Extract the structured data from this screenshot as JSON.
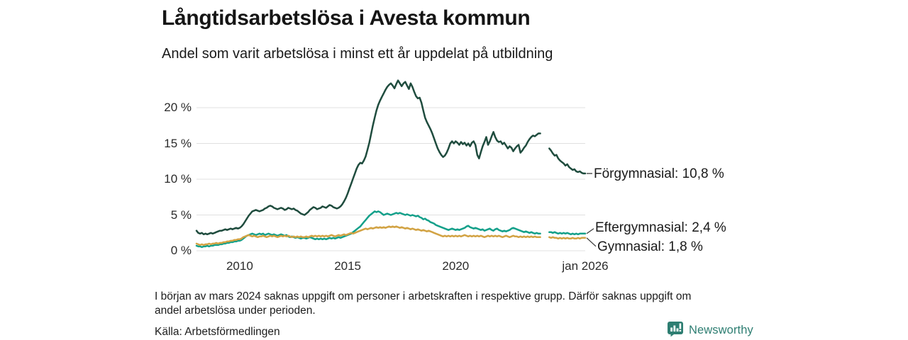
{
  "header": {
    "title": "Långtidsarbetslösa i Avesta kommun",
    "subtitle": "Andel som varit arbetslösa i minst ett år uppdelat på utbildning"
  },
  "chart_data": {
    "type": "line",
    "title": "Långtidsarbetslösa i Avesta kommun",
    "subtitle": "Andel som varit arbetslösa i minst ett år uppdelat på utbildning",
    "unit": "%",
    "frequency": "monthly",
    "x_start": "jan 2008",
    "x_end": "jan 2026",
    "ylim": [
      0,
      24.5
    ],
    "grid": true,
    "data_gap": "kring mars 2024 visas avbrott i linjerna (uppgift saknas)",
    "y_ticks": [
      {
        "value": 0,
        "label": "0 %"
      },
      {
        "value": 5,
        "label": "5 %"
      },
      {
        "value": 10,
        "label": "10 %"
      },
      {
        "value": 15,
        "label": "15 %"
      },
      {
        "value": 20,
        "label": "20 %"
      }
    ],
    "x_ticks": [
      {
        "month_index": 24,
        "label": "2010"
      },
      {
        "month_index": 84,
        "label": "2015"
      },
      {
        "month_index": 144,
        "label": "2020"
      },
      {
        "month_index": 216,
        "label": "jan 2026"
      }
    ],
    "series": [
      {
        "name": "Förgymnasial",
        "color": "#1f4c3e",
        "latest_value": "10,8 %",
        "end_label": "Förgymnasial: 10,8 %",
        "values": [
          2.8,
          2.5,
          2.4,
          2.5,
          2.3,
          2.4,
          2.3,
          2.4,
          2.5,
          2.4,
          2.5,
          2.6,
          2.7,
          2.8,
          2.8,
          2.9,
          3.0,
          2.9,
          3.0,
          3.1,
          3.0,
          3.1,
          3.2,
          3.1,
          3.2,
          3.4,
          3.7,
          4.1,
          4.5,
          4.9,
          5.2,
          5.5,
          5.6,
          5.7,
          5.6,
          5.5,
          5.6,
          5.7,
          5.9,
          6.0,
          6.2,
          6.3,
          6.2,
          6.0,
          5.9,
          5.8,
          5.9,
          6.0,
          5.9,
          5.7,
          5.8,
          6.0,
          5.9,
          5.8,
          5.9,
          5.7,
          5.6,
          5.4,
          5.2,
          5.1,
          5.0,
          5.2,
          5.4,
          5.7,
          5.9,
          6.1,
          6.0,
          5.8,
          5.9,
          6.0,
          6.2,
          6.1,
          6.0,
          6.2,
          6.4,
          6.3,
          6.1,
          6.0,
          5.9,
          6.0,
          6.2,
          6.5,
          6.9,
          7.4,
          8.0,
          8.7,
          9.4,
          10.1,
          10.8,
          11.5,
          12.0,
          12.3,
          12.2,
          12.6,
          13.2,
          14.1,
          15.1,
          16.3,
          17.5,
          18.6,
          19.6,
          20.4,
          21.0,
          21.5,
          22.0,
          22.5,
          22.9,
          23.2,
          23.4,
          23.1,
          22.7,
          23.3,
          23.8,
          23.4,
          23.0,
          23.4,
          23.6,
          23.1,
          22.6,
          23.4,
          22.9,
          22.2,
          21.6,
          21.3,
          21.4,
          20.7,
          19.6,
          18.6,
          18.0,
          17.5,
          17.0,
          16.4,
          15.7,
          15.0,
          14.3,
          13.8,
          13.4,
          13.1,
          13.3,
          13.7,
          14.3,
          15.0,
          15.3,
          15.0,
          15.3,
          15.1,
          14.8,
          15.2,
          14.9,
          15.1,
          14.7,
          15.0,
          14.6,
          15.1,
          15.3,
          14.8,
          13.4,
          12.9,
          13.8,
          14.6,
          15.2,
          15.9,
          14.8,
          15.3,
          16.0,
          16.6,
          15.9,
          15.4,
          15.2,
          15.3,
          14.9,
          15.1,
          14.7,
          14.3,
          14.6,
          14.4,
          13.9,
          14.3,
          14.6,
          14.8,
          13.7,
          14.0,
          14.4,
          14.7,
          15.2,
          15.6,
          15.9,
          16.1,
          16.0,
          16.2,
          16.4,
          16.4,
          null,
          null,
          null,
          null,
          14.3,
          14.0,
          13.6,
          13.3,
          13.4,
          12.9,
          12.6,
          12.4,
          12.2,
          11.9,
          12.1,
          11.7,
          11.5,
          11.3,
          11.4,
          11.1,
          11.0,
          11.1,
          10.9,
          10.8,
          10.8
        ]
      },
      {
        "name": "Eftergymnasial",
        "color": "#14a08a",
        "latest_value": "2,4 %",
        "end_label": "Eftergymnasial:  2,4 %",
        "values": [
          0.7,
          0.6,
          0.6,
          0.5,
          0.6,
          0.6,
          0.7,
          0.6,
          0.7,
          0.7,
          0.8,
          0.8,
          0.8,
          0.9,
          0.9,
          1.0,
          1.0,
          1.1,
          1.1,
          1.2,
          1.2,
          1.3,
          1.3,
          1.4,
          1.4,
          1.5,
          1.7,
          1.9,
          2.1,
          2.2,
          2.3,
          2.4,
          2.3,
          2.2,
          2.3,
          2.4,
          2.3,
          2.4,
          2.2,
          2.3,
          2.4,
          2.3,
          2.2,
          2.3,
          2.2,
          2.1,
          2.2,
          2.3,
          2.2,
          2.1,
          2.2,
          2.0,
          1.9,
          2.0,
          1.9,
          1.8,
          1.9,
          1.8,
          1.7,
          1.8,
          1.8,
          1.7,
          1.8,
          1.9,
          1.8,
          1.7,
          1.6,
          1.7,
          1.6,
          1.7,
          1.6,
          1.7,
          1.6,
          1.7,
          1.8,
          1.7,
          1.8,
          1.7,
          1.8,
          1.9,
          1.8,
          1.9,
          2.0,
          2.1,
          2.2,
          2.3,
          2.4,
          2.6,
          2.8,
          3.0,
          3.2,
          3.4,
          3.7,
          4.0,
          4.3,
          4.6,
          4.9,
          5.1,
          5.3,
          5.5,
          5.4,
          5.5,
          5.4,
          5.2,
          5.0,
          5.1,
          5.2,
          5.1,
          5.0,
          5.1,
          5.2,
          5.3,
          5.2,
          5.3,
          5.2,
          5.1,
          5.0,
          5.1,
          5.0,
          4.9,
          5.0,
          4.9,
          4.8,
          4.9,
          4.7,
          4.6,
          4.4,
          4.5,
          4.3,
          4.2,
          4.0,
          3.9,
          3.8,
          3.6,
          3.5,
          3.4,
          3.3,
          3.2,
          3.1,
          3.0,
          2.9,
          3.0,
          3.1,
          3.0,
          2.9,
          3.0,
          2.9,
          3.0,
          3.1,
          3.2,
          3.4,
          3.5,
          3.3,
          3.2,
          3.1,
          3.2,
          3.1,
          3.0,
          2.9,
          3.0,
          2.8,
          2.9,
          3.0,
          3.1,
          2.9,
          2.8,
          3.0,
          3.1,
          2.9,
          2.8,
          2.7,
          2.8,
          2.7,
          2.8,
          2.9,
          3.1,
          3.2,
          3.1,
          3.0,
          2.9,
          2.8,
          2.7,
          2.6,
          2.7,
          2.6,
          2.5,
          2.6,
          2.5,
          2.4,
          2.5,
          2.4,
          2.4,
          null,
          null,
          null,
          null,
          2.6,
          2.6,
          2.5,
          2.6,
          2.5,
          2.4,
          2.5,
          2.4,
          2.5,
          2.4,
          2.5,
          2.4,
          2.3,
          2.4,
          2.3,
          2.4,
          2.3,
          2.4,
          2.4,
          2.4,
          2.4
        ]
      },
      {
        "name": "Gymnasial",
        "color": "#d2a344",
        "latest_value": "1,8 %",
        "end_label": "Gymnasial:  1,8 %",
        "values": [
          1.0,
          0.9,
          0.8,
          0.9,
          0.8,
          0.9,
          0.9,
          1.0,
          0.9,
          1.0,
          1.0,
          1.1,
          1.0,
          1.1,
          1.1,
          1.2,
          1.2,
          1.3,
          1.3,
          1.4,
          1.4,
          1.5,
          1.5,
          1.6,
          1.6,
          1.7,
          1.9,
          2.0,
          2.1,
          2.2,
          2.1,
          2.0,
          2.1,
          2.0,
          1.9,
          2.0,
          2.0,
          2.1,
          2.0,
          1.9,
          2.0,
          2.1,
          2.0,
          2.1,
          2.0,
          1.9,
          2.0,
          2.1,
          2.0,
          2.1,
          2.0,
          2.1,
          2.0,
          1.9,
          2.0,
          1.9,
          2.0,
          1.9,
          2.0,
          1.9,
          1.9,
          2.0,
          1.9,
          2.0,
          2.1,
          2.0,
          2.1,
          2.0,
          2.1,
          2.0,
          2.1,
          2.0,
          2.1,
          2.0,
          2.1,
          2.2,
          2.1,
          2.0,
          2.1,
          2.2,
          2.1,
          2.2,
          2.3,
          2.2,
          2.3,
          2.4,
          2.5,
          2.4,
          2.5,
          2.6,
          2.7,
          2.8,
          2.9,
          3.0,
          3.1,
          3.0,
          3.1,
          3.2,
          3.1,
          3.2,
          3.3,
          3.2,
          3.3,
          3.2,
          3.3,
          3.2,
          3.3,
          3.4,
          3.3,
          3.4,
          3.3,
          3.4,
          3.3,
          3.2,
          3.3,
          3.2,
          3.1,
          3.2,
          3.1,
          3.0,
          3.1,
          3.0,
          2.9,
          3.0,
          2.9,
          2.8,
          2.9,
          2.8,
          2.7,
          2.8,
          2.7,
          2.6,
          2.5,
          2.4,
          2.3,
          2.2,
          2.1,
          2.0,
          2.1,
          2.0,
          2.1,
          2.0,
          2.1,
          2.0,
          2.1,
          2.0,
          2.1,
          2.0,
          2.1,
          2.2,
          2.1,
          2.0,
          2.1,
          2.0,
          2.1,
          2.0,
          2.1,
          2.0,
          2.1,
          2.0,
          1.9,
          2.0,
          2.1,
          2.0,
          2.1,
          2.0,
          2.1,
          2.0,
          2.1,
          2.0,
          1.9,
          2.0,
          2.1,
          2.0,
          1.9,
          2.0,
          2.1,
          2.0,
          2.0,
          1.9,
          2.0,
          1.9,
          2.0,
          1.9,
          2.0,
          1.9,
          2.0,
          1.9,
          2.0,
          1.9,
          1.9,
          1.9,
          null,
          null,
          null,
          null,
          1.9,
          1.8,
          1.9,
          1.8,
          1.8,
          1.7,
          1.8,
          1.7,
          1.8,
          1.7,
          1.8,
          1.7,
          1.7,
          1.8,
          1.7,
          1.7,
          1.8,
          1.7,
          1.8,
          1.8,
          1.8
        ]
      }
    ]
  },
  "footer": {
    "note_lines": [
      "I början av mars 2024 saknas uppgift om personer i arbetskraften i respektive grupp. Därför saknas uppgift om",
      "andel arbetslösa under perioden."
    ],
    "source": "Källa: Arbetsförmedlingen",
    "brand": "Newsworthy"
  },
  "colors": {
    "forgymnasial": "#1f4c3e",
    "eftergymnasial": "#14a08a",
    "gymnasial": "#d2a344",
    "grid": "#e0e0e0",
    "leader": "#3c3c3c",
    "text": "#1a1a1a",
    "brand": "#2e7e72"
  }
}
